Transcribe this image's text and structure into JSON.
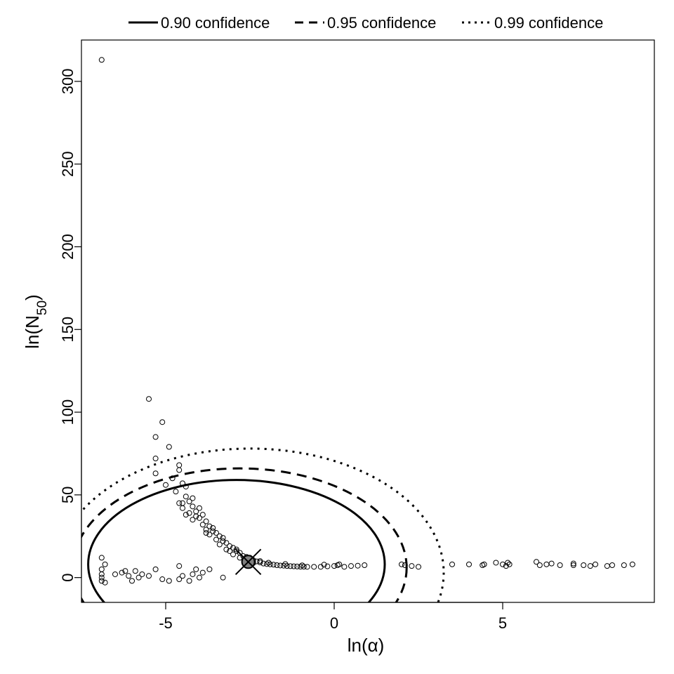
{
  "chart_data": {
    "type": "scatter",
    "xlabel": "ln(α)",
    "ylabel_main": "ln(N",
    "ylabel_sub": "50",
    "ylabel_close": ")",
    "xlim": [
      -7.5,
      9.5
    ],
    "ylim": [
      -15,
      325
    ],
    "x_ticks": [
      -5,
      0,
      5
    ],
    "x_tick_labels": [
      "-5",
      "0",
      "5"
    ],
    "y_ticks": [
      0,
      50,
      100,
      150,
      200,
      250,
      300
    ],
    "y_tick_labels": [
      "0",
      "50",
      "100",
      "150",
      "200",
      "250",
      "300"
    ],
    "grid": false,
    "legend_position": "top",
    "legend": [
      {
        "label": "0.90 confidence",
        "style": "solid"
      },
      {
        "label": "0.95 confidence",
        "style": "dashed"
      },
      {
        "label": "0.99 confidence",
        "style": "dotted"
      }
    ],
    "best_estimate": {
      "x": -2.55,
      "y": 9.5,
      "marker": "circled-x",
      "fill": "#808080"
    },
    "ellipses": [
      {
        "level": "0.90",
        "style": "solid",
        "cx": -2.9,
        "cy": 8,
        "rx": 4.4,
        "ry": 51
      },
      {
        "level": "0.95",
        "style": "dashed",
        "cx": -2.8,
        "cy": 6,
        "rx": 4.95,
        "ry": 60
      },
      {
        "level": "0.99",
        "style": "dotted",
        "cx": -2.5,
        "cy": 3,
        "rx": 5.75,
        "ry": 75
      }
    ],
    "points": [
      [
        -6.9,
        313
      ],
      [
        -5.5,
        108
      ],
      [
        -5.1,
        94
      ],
      [
        -5.3,
        85
      ],
      [
        -4.9,
        79
      ],
      [
        -5.3,
        72
      ],
      [
        -5.3,
        63
      ],
      [
        -4.6,
        68
      ],
      [
        -4.6,
        65
      ],
      [
        -4.8,
        60
      ],
      [
        -5.0,
        56
      ],
      [
        -4.5,
        57
      ],
      [
        -4.4,
        55
      ],
      [
        -4.7,
        52
      ],
      [
        -4.4,
        49
      ],
      [
        -4.2,
        48
      ],
      [
        -4.3,
        46
      ],
      [
        -4.5,
        45
      ],
      [
        -4.2,
        43
      ],
      [
        -4.0,
        42
      ],
      [
        -4.1,
        40
      ],
      [
        -4.3,
        39
      ],
      [
        -3.9,
        38
      ],
      [
        -4.0,
        36
      ],
      [
        -4.2,
        35
      ],
      [
        -3.8,
        34
      ],
      [
        -3.9,
        32
      ],
      [
        -3.7,
        31
      ],
      [
        -3.8,
        29
      ],
      [
        -3.6,
        28
      ],
      [
        -3.5,
        27
      ],
      [
        -3.7,
        26
      ],
      [
        -3.4,
        25
      ],
      [
        -3.5,
        23
      ],
      [
        -3.3,
        22
      ],
      [
        -3.2,
        21
      ],
      [
        -3.4,
        20
      ],
      [
        -3.1,
        19
      ],
      [
        -3.0,
        18
      ],
      [
        -3.2,
        17
      ],
      [
        -2.9,
        16
      ],
      [
        -2.8,
        15
      ],
      [
        -3.0,
        14
      ],
      [
        -2.7,
        13
      ],
      [
        -2.6,
        12.5
      ],
      [
        -2.8,
        12
      ],
      [
        -2.5,
        11
      ],
      [
        -2.4,
        10.5
      ],
      [
        -2.6,
        10
      ],
      [
        -2.3,
        9.8
      ],
      [
        -2.2,
        9.2
      ],
      [
        -2.4,
        8.8
      ],
      [
        -2.1,
        8.5
      ],
      [
        -2.0,
        8.2
      ],
      [
        -1.9,
        8
      ],
      [
        -1.8,
        7.8
      ],
      [
        -1.7,
        7.5
      ],
      [
        -1.6,
        7.3
      ],
      [
        -1.5,
        7.2
      ],
      [
        -1.4,
        7
      ],
      [
        -1.3,
        6.9
      ],
      [
        -1.2,
        6.8
      ],
      [
        -1.1,
        6.7
      ],
      [
        -1.0,
        6.6
      ],
      [
        -0.9,
        6.6
      ],
      [
        -0.8,
        6.5
      ],
      [
        -0.6,
        6.5
      ],
      [
        -0.4,
        6.5
      ],
      [
        -0.2,
        6.8
      ],
      [
        0.0,
        7
      ],
      [
        0.1,
        7.5
      ],
      [
        0.3,
        6.5
      ],
      [
        0.5,
        7
      ],
      [
        0.7,
        7.2
      ],
      [
        0.9,
        7.5
      ],
      [
        0.15,
        8
      ],
      [
        -0.3,
        7.8
      ],
      [
        -4.6,
        45
      ],
      [
        -4.5,
        42
      ],
      [
        -4.1,
        37
      ],
      [
        -3.6,
        30
      ],
      [
        -3.3,
        24
      ],
      [
        -2.9,
        17
      ],
      [
        -2.5,
        12
      ],
      [
        -4.4,
        38
      ],
      [
        -3.8,
        27
      ],
      [
        -3.1,
        16
      ],
      [
        -2.2,
        10
      ],
      [
        -1.95,
        9
      ],
      [
        -1.45,
        8.2
      ],
      [
        -0.95,
        7.4
      ],
      [
        -6.9,
        12
      ],
      [
        -6.8,
        8
      ],
      [
        -6.9,
        5
      ],
      [
        -6.9,
        2
      ],
      [
        -6.9,
        0
      ],
      [
        -6.9,
        -2
      ],
      [
        -6.8,
        -3
      ],
      [
        -6.5,
        2
      ],
      [
        -6.3,
        3
      ],
      [
        -6.1,
        1
      ],
      [
        -5.9,
        4
      ],
      [
        -5.7,
        2
      ],
      [
        -5.5,
        1
      ],
      [
        -5.3,
        5
      ],
      [
        -5.1,
        -1
      ],
      [
        -4.9,
        -2
      ],
      [
        -4.6,
        -1
      ],
      [
        -4.6,
        7
      ],
      [
        -4.3,
        -2
      ],
      [
        -4.1,
        5
      ],
      [
        -4.0,
        0
      ],
      [
        -3.9,
        3
      ],
      [
        -3.7,
        5
      ],
      [
        -3.3,
        0
      ],
      [
        -6.0,
        -2
      ],
      [
        -5.8,
        0
      ],
      [
        -6.2,
        4
      ],
      [
        -4.5,
        1
      ],
      [
        -4.2,
        2
      ],
      [
        2.0,
        8
      ],
      [
        2.1,
        7.5
      ],
      [
        2.3,
        7
      ],
      [
        2.5,
        6.5
      ],
      [
        3.5,
        8
      ],
      [
        4.0,
        8
      ],
      [
        4.4,
        7.5
      ],
      [
        4.45,
        8
      ],
      [
        4.8,
        9
      ],
      [
        5.0,
        8
      ],
      [
        5.1,
        7
      ],
      [
        5.15,
        9
      ],
      [
        5.2,
        8
      ],
      [
        6.0,
        9.5
      ],
      [
        6.1,
        7.5
      ],
      [
        6.3,
        8
      ],
      [
        6.45,
        8.5
      ],
      [
        6.7,
        7.5
      ],
      [
        7.1,
        7.5
      ],
      [
        7.1,
        8.5
      ],
      [
        7.4,
        7.5
      ],
      [
        7.6,
        7
      ],
      [
        7.75,
        8
      ],
      [
        8.1,
        7
      ],
      [
        8.25,
        7.5
      ],
      [
        8.6,
        7.5
      ],
      [
        8.85,
        8
      ]
    ]
  }
}
